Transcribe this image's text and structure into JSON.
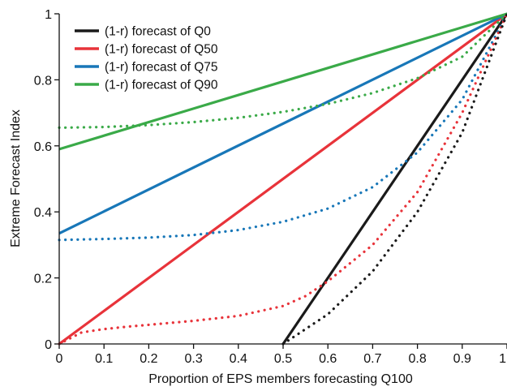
{
  "chart_data": {
    "type": "line",
    "xlabel": "Proportion of EPS members forecasting Q100",
    "ylabel": "Extreme Forecast Index",
    "xlim": [
      0,
      1
    ],
    "ylim": [
      0,
      1
    ],
    "x_ticks": [
      0,
      0.1,
      0.2,
      0.3,
      0.4,
      0.5,
      0.6,
      0.7,
      0.8,
      0.9,
      1
    ],
    "x_tick_labels": [
      "0",
      "0.1",
      "0.2",
      "0.3",
      "0.4",
      "0.5",
      "0.6",
      "0.7",
      "0.8",
      "0.9",
      "1"
    ],
    "y_ticks": [
      0,
      0.2,
      0.4,
      0.6,
      0.8,
      1
    ],
    "y_tick_labels": [
      "0",
      "0.2",
      "0.4",
      "0.6",
      "0.8",
      "1"
    ],
    "grid": false,
    "legend_position": "top-left",
    "series": [
      {
        "name": "(1-r) forecast of Q0",
        "color": "#1a1a1a",
        "style": "solid",
        "in_legend": true,
        "x": [
          0.5,
          1.0
        ],
        "y": [
          0.0,
          1.0
        ]
      },
      {
        "name": "(1-r) forecast of Q50",
        "color": "#e8333a",
        "style": "solid",
        "in_legend": true,
        "x": [
          0.0,
          1.0
        ],
        "y": [
          0.0,
          1.0
        ]
      },
      {
        "name": "(1-r) forecast of Q75",
        "color": "#1877b8",
        "style": "solid",
        "in_legend": true,
        "x": [
          0.0,
          1.0
        ],
        "y": [
          0.335,
          1.0
        ]
      },
      {
        "name": "(1-r) forecast of Q90",
        "color": "#3aaa48",
        "style": "solid",
        "in_legend": true,
        "x": [
          0.0,
          1.0
        ],
        "y": [
          0.59,
          1.0
        ]
      },
      {
        "color": "#3aaa48",
        "style": "dotted",
        "in_legend": false,
        "x": [
          0,
          0.1,
          0.2,
          0.3,
          0.4,
          0.5,
          0.6,
          0.7,
          0.8,
          0.9,
          1.0
        ],
        "y": [
          0.655,
          0.657,
          0.663,
          0.672,
          0.685,
          0.703,
          0.727,
          0.76,
          0.805,
          0.87,
          1.0
        ]
      },
      {
        "color": "#1877b8",
        "style": "dotted",
        "in_legend": false,
        "x": [
          0,
          0.1,
          0.2,
          0.3,
          0.4,
          0.5,
          0.6,
          0.7,
          0.8,
          0.9,
          1.0
        ],
        "y": [
          0.315,
          0.318,
          0.322,
          0.33,
          0.345,
          0.37,
          0.41,
          0.475,
          0.58,
          0.74,
          1.0
        ]
      },
      {
        "color": "#e8333a",
        "style": "dotted",
        "in_legend": false,
        "x": [
          0,
          0.05,
          0.1,
          0.15,
          0.2,
          0.3,
          0.4,
          0.5,
          0.55,
          0.6,
          0.7,
          0.8,
          0.9,
          1.0
        ],
        "y": [
          0.0,
          0.035,
          0.045,
          0.052,
          0.058,
          0.07,
          0.085,
          0.115,
          0.145,
          0.19,
          0.3,
          0.46,
          0.7,
          1.0
        ]
      },
      {
        "color": "#1a1a1a",
        "style": "dotted",
        "in_legend": false,
        "x": [
          0.5,
          0.6,
          0.7,
          0.8,
          0.9,
          1.0
        ],
        "y": [
          0.0,
          0.09,
          0.22,
          0.4,
          0.64,
          1.0
        ]
      }
    ]
  }
}
